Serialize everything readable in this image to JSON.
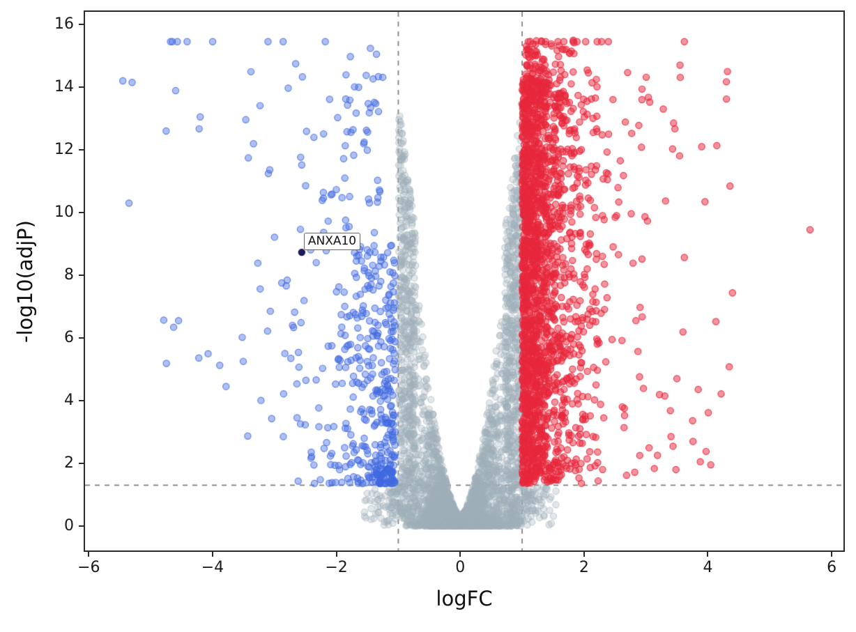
{
  "figure": {
    "background": "#ffffff"
  },
  "chart_data": {
    "type": "scatter",
    "title": "",
    "xlabel": "logFC",
    "ylabel": "-log10(adjP)",
    "xlim": [
      -6.06,
      6.19
    ],
    "ylim": [
      -0.78,
      16.4
    ],
    "grid": false,
    "legend": null,
    "xticks": [
      {
        "v": -6,
        "label": "−6"
      },
      {
        "v": -4,
        "label": "−4"
      },
      {
        "v": -2,
        "label": "−2"
      },
      {
        "v": 0,
        "label": "0"
      },
      {
        "v": 2,
        "label": "2"
      },
      {
        "v": 4,
        "label": "4"
      },
      {
        "v": 6,
        "label": "6"
      }
    ],
    "yticks": [
      {
        "v": 0,
        "label": "0"
      },
      {
        "v": 2,
        "label": "2"
      },
      {
        "v": 4,
        "label": "4"
      },
      {
        "v": 6,
        "label": "6"
      },
      {
        "v": 8,
        "label": "8"
      },
      {
        "v": 10,
        "label": "10"
      },
      {
        "v": 12,
        "label": "12"
      },
      {
        "v": 14,
        "label": "14"
      },
      {
        "v": 16,
        "label": "16"
      }
    ],
    "threshold_lines": {
      "vertical_logfc": [
        -1,
        1
      ],
      "horizontal_neglog10p": 1.301,
      "color": "#808080",
      "style": "dashed"
    },
    "annotation": {
      "label": "ANXA10",
      "x": -2.56,
      "y": 8.73,
      "point_color": "#1c1c5e"
    },
    "point_style": {
      "radius": 4.6,
      "stroke_width": 1.2
    },
    "seed": 42,
    "series": [
      {
        "name": "not-significant",
        "color": "#9fb0ba",
        "fill_alpha": 0.3,
        "edge_alpha": 0.5,
        "approx_count": 4300,
        "clusters": [
          {
            "n": 3100,
            "x": {
              "type": "normal",
              "mean": 0,
              "sd": 0.42,
              "clipMin": -0.99,
              "clipMax": 0.99
            },
            "y": {
              "type": "envelope",
              "base": 0.35,
              "amp": 13.5,
              "xpow": 1.7,
              "upow": 2.2
            }
          },
          {
            "n": 1050,
            "x": {
              "type": "edge",
              "min": 0.72,
              "max": 0.995
            },
            "y": {
              "type": "envelope",
              "base": 0.3,
              "amp": 13.3,
              "xpow": 1.15,
              "upow": 1.0
            }
          },
          {
            "n": 150,
            "x": {
              "type": "edgeexp",
              "start": 1.0,
              "rate": 4.0,
              "max": 1.55
            },
            "y": {
              "type": "uniform",
              "min": 0.02,
              "max": 1.25
            }
          }
        ],
        "explicit_points": []
      },
      {
        "name": "downregulated",
        "color": "#4169e1",
        "fill_alpha": 0.42,
        "edge_alpha": 0.8,
        "approx_count": 500,
        "clusters": [
          {
            "n": 310,
            "x": {
              "type": "exp",
              "base": -1.05,
              "rate": 2.7,
              "max": 1.7,
              "sign": -1
            },
            "y": {
              "type": "pow",
              "min": 1.35,
              "span": 7.7,
              "pow": 1.9
            }
          },
          {
            "n": 175,
            "x": {
              "type": "exp",
              "base": -1.25,
              "rate": 1.05,
              "max": 4.2,
              "sign": -1
            },
            "y": {
              "type": "pow",
              "min": 1.4,
              "span": 13.9,
              "pow": 1.05
            }
          },
          {
            "n": 7,
            "x": {
              "type": "uniform",
              "min": -4.9,
              "max": -2.0
            },
            "y": {
              "type": "const",
              "value": 15.45
            }
          }
        ],
        "explicit_points": [
          [
            -5.45,
            14.2
          ],
          [
            -5.3,
            14.15
          ],
          [
            -5.35,
            10.3
          ],
          [
            -4.65,
            15.45
          ],
          [
            -4.55,
            6.55
          ],
          [
            -4.2,
            13.05
          ],
          [
            -4.75,
            12.6
          ]
        ]
      },
      {
        "name": "upregulated",
        "color": "#e8273c",
        "fill_alpha": 0.5,
        "edge_alpha": 0.85,
        "approx_count": 2100,
        "clusters": [
          {
            "n": 1650,
            "x": {
              "type": "exp",
              "base": 1.0,
              "rate": 3.2,
              "max": 1.4,
              "sign": 1
            },
            "y": {
              "type": "pow",
              "min": 1.35,
              "span": 12.9,
              "pow": 1.05
            }
          },
          {
            "n": 300,
            "x": {
              "type": "exp",
              "base": 1.1,
              "rate": 1.15,
              "max": 3.3,
              "sign": 1
            },
            "y": {
              "type": "pow",
              "min": 1.35,
              "span": 13.2,
              "pow": 1.1
            }
          },
          {
            "n": 130,
            "x": {
              "type": "exp",
              "base": 1.05,
              "rate": 3.8,
              "max": 0.9,
              "sign": 1
            },
            "y": {
              "type": "uniform",
              "min": 13.3,
              "max": 15.5
            }
          },
          {
            "n": 10,
            "x": {
              "type": "uniform",
              "min": 1.05,
              "max": 2.45
            },
            "y": {
              "type": "const",
              "value": 15.45
            }
          }
        ],
        "explicit_points": [
          [
            5.65,
            9.45
          ],
          [
            4.3,
            13.62
          ],
          [
            3.62,
            15.45
          ],
          [
            3.28,
            13.3
          ],
          [
            3.9,
            12.1
          ],
          [
            3.55,
            14.7
          ],
          [
            3.5,
            4.7
          ],
          [
            2.9,
            2.25
          ]
        ]
      }
    ]
  }
}
